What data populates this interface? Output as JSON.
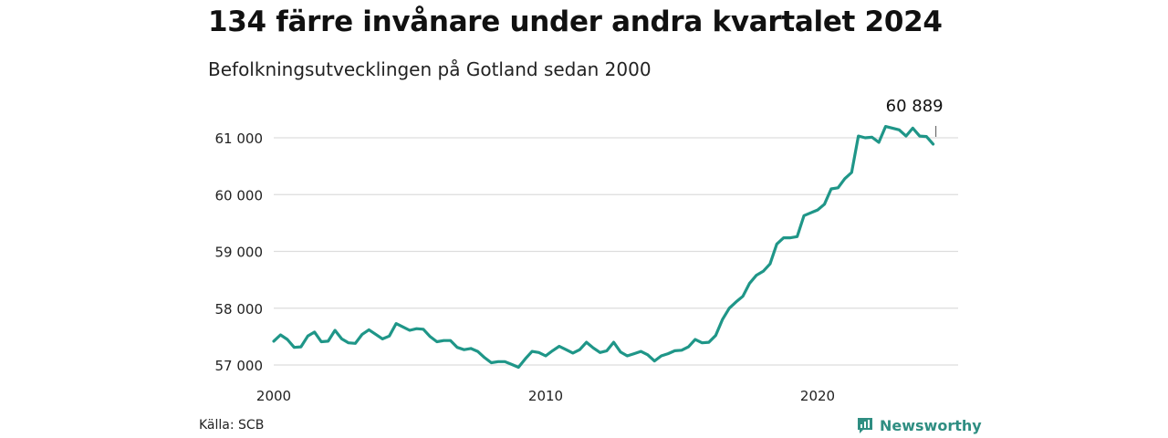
{
  "header": {
    "title": "134 färre invånare under andra kvartalet 2024",
    "subtitle": "Befolkningsutvecklingen på Gotland sedan 2000"
  },
  "footer": {
    "source": "Källa: SCB",
    "brand_name": "Newsworthy",
    "brand_icon": "bar-chart-icon"
  },
  "colors": {
    "line": "#1f9688",
    "grid": "#dddddd",
    "brand": "#2f8e82"
  },
  "chart_data": {
    "type": "line",
    "title": "134 färre invånare under andra kvartalet 2024",
    "subtitle": "Befolkningsutvecklingen på Gotland sedan 2000",
    "xlabel": "",
    "ylabel": "",
    "x_ticks": [
      "2000",
      "2010",
      "2020"
    ],
    "y_ticks": [
      57000,
      58000,
      59000,
      60000,
      61000
    ],
    "y_tick_labels": [
      "57 000",
      "58 000",
      "59 000",
      "60 000",
      "61 000"
    ],
    "ylim": [
      57000,
      61000
    ],
    "grid": true,
    "annotation": {
      "x": "2024-Q2",
      "value": 60889,
      "label": "60 889"
    },
    "series": [
      {
        "x": [
          "2000-Q1",
          "2000-Q2",
          "2000-Q3",
          "2000-Q4",
          "2001-Q1",
          "2001-Q2",
          "2001-Q3",
          "2001-Q4",
          "2002-Q1",
          "2002-Q2",
          "2002-Q3",
          "2002-Q4",
          "2003-Q1",
          "2003-Q2",
          "2003-Q3",
          "2003-Q4",
          "2004-Q1",
          "2004-Q2",
          "2004-Q3",
          "2004-Q4",
          "2005-Q1",
          "2005-Q2",
          "2005-Q3",
          "2005-Q4",
          "2006-Q1",
          "2006-Q2",
          "2006-Q3",
          "2006-Q4",
          "2007-Q1",
          "2007-Q2",
          "2007-Q3",
          "2007-Q4",
          "2008-Q1",
          "2008-Q2",
          "2008-Q3",
          "2008-Q4",
          "2009-Q1",
          "2009-Q2",
          "2009-Q3",
          "2009-Q4",
          "2010-Q1",
          "2010-Q2",
          "2010-Q3",
          "2010-Q4",
          "2011-Q1",
          "2011-Q2",
          "2011-Q3",
          "2011-Q4",
          "2012-Q1",
          "2012-Q2",
          "2012-Q3",
          "2012-Q4",
          "2013-Q1",
          "2013-Q2",
          "2013-Q3",
          "2013-Q4",
          "2014-Q1",
          "2014-Q2",
          "2014-Q3",
          "2014-Q4",
          "2015-Q1",
          "2015-Q2",
          "2015-Q3",
          "2015-Q4",
          "2016-Q1",
          "2016-Q2",
          "2016-Q3",
          "2016-Q4",
          "2017-Q1",
          "2017-Q2",
          "2017-Q3",
          "2017-Q4",
          "2018-Q1",
          "2018-Q2",
          "2018-Q3",
          "2018-Q4",
          "2019-Q1",
          "2019-Q2",
          "2019-Q3",
          "2019-Q4",
          "2020-Q1",
          "2020-Q2",
          "2020-Q3",
          "2020-Q4",
          "2021-Q1",
          "2021-Q2",
          "2021-Q3",
          "2021-Q4",
          "2022-Q1",
          "2022-Q2",
          "2022-Q3",
          "2022-Q4",
          "2023-Q1",
          "2023-Q2",
          "2023-Q3",
          "2023-Q4",
          "2024-Q1",
          "2024-Q2"
        ],
        "values": [
          57420,
          57530,
          57450,
          57310,
          57320,
          57510,
          57580,
          57410,
          57420,
          57610,
          57460,
          57390,
          57380,
          57540,
          57620,
          57540,
          57460,
          57510,
          57730,
          57670,
          57610,
          57640,
          57630,
          57500,
          57410,
          57430,
          57430,
          57310,
          57270,
          57290,
          57240,
          57130,
          57040,
          57060,
          57060,
          57010,
          56960,
          57110,
          57240,
          57220,
          57160,
          57250,
          57330,
          57270,
          57210,
          57270,
          57400,
          57300,
          57220,
          57250,
          57400,
          57230,
          57160,
          57200,
          57240,
          57180,
          57070,
          57160,
          57200,
          57250,
          57260,
          57320,
          57450,
          57390,
          57400,
          57520,
          57800,
          58000,
          58110,
          58210,
          58440,
          58580,
          58650,
          58780,
          59130,
          59240,
          59240,
          59260,
          59630,
          59680,
          59730,
          59830,
          60100,
          60120,
          60280,
          60390,
          61030,
          61000,
          61010,
          60920,
          61200,
          61170,
          61140,
          61030,
          61170,
          61030,
          61023,
          60889
        ]
      }
    ]
  }
}
